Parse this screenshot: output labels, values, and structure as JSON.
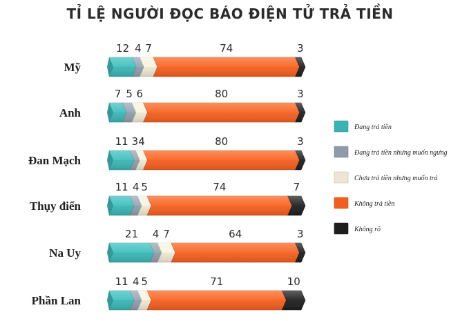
{
  "chart_data": {
    "type": "bar",
    "stacked": true,
    "orientation": "horizontal",
    "title": "TỈ LỆ NGƯỜI ĐỌC BÁO ĐIỆN TỬ TRẢ TIỀN",
    "categories": [
      "Mỹ",
      "Anh",
      "Đan Mạch",
      "Thụy điển",
      "Na Uy",
      "Phần Lan"
    ],
    "series": [
      {
        "name": "Đang trả tiền",
        "color": "#3bb3b3",
        "values": [
          12,
          7,
          11,
          11,
          21,
          11
        ]
      },
      {
        "name": "Đang trả tiền nhưng muốn ngưng",
        "color": "#8e9ba8",
        "values": [
          4,
          5,
          3,
          4,
          4,
          4
        ]
      },
      {
        "name": "Chưa trả tiền nhưng muốn trả",
        "color": "#ede6d2",
        "values": [
          7,
          6,
          4,
          5,
          7,
          5
        ]
      },
      {
        "name": "Không trả tiền",
        "color": "#f25e1e",
        "values": [
          74,
          80,
          80,
          74,
          64,
          71
        ]
      },
      {
        "name": "Không rõ",
        "color": "#1e1e1e",
        "values": [
          3,
          3,
          3,
          7,
          3,
          10
        ]
      }
    ],
    "legend_position": "right",
    "grid": false
  }
}
